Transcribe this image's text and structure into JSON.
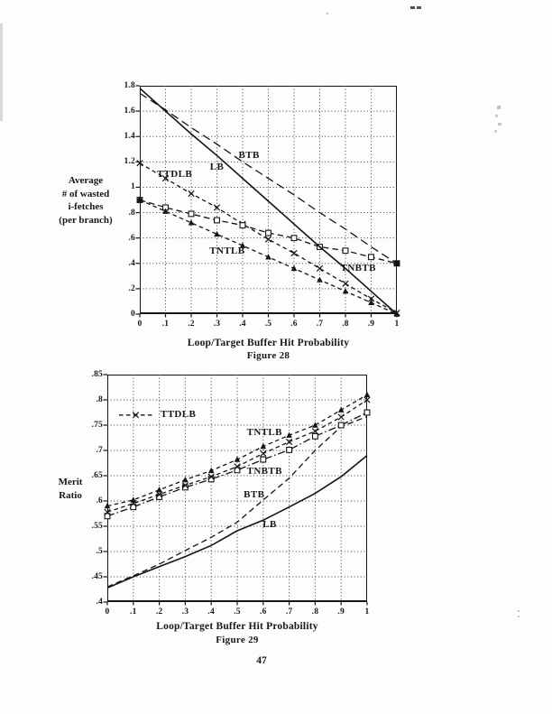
{
  "page": {
    "number": "47"
  },
  "figures": [
    {
      "caption": "Figure 28",
      "xlabel": "Loop/Target Buffer Hit Probability",
      "ylabel_lines": [
        "Average",
        "# of wasted",
        "i-fetches",
        "(per branch)"
      ],
      "chart_data": {
        "type": "line",
        "x": [
          0,
          0.1,
          0.2,
          0.3,
          0.4,
          0.5,
          0.6,
          0.7,
          0.8,
          0.9,
          1
        ],
        "xtick_labels": [
          "0",
          ".1",
          ".2",
          ".3",
          ".4",
          ".5",
          ".6",
          ".7",
          ".8",
          ".9",
          "1"
        ],
        "ytick_values": [
          0,
          0.2,
          0.4,
          0.6,
          0.8,
          1,
          1.2,
          1.4,
          1.6,
          1.8
        ],
        "ytick_labels": [
          "0",
          ".2",
          ".4",
          ".6",
          ".8",
          "1",
          "1.2",
          "1.4",
          "1.6",
          "1.8"
        ],
        "ylim": [
          0,
          1.8
        ],
        "grid": "dotted",
        "legend_position": "in-plot-labels",
        "series": [
          {
            "name": "BTB",
            "style": "longdash",
            "marker": "none",
            "values": [
              1.74,
              1.61,
              1.47,
              1.34,
              1.2,
              1.07,
              0.94,
              0.8,
              0.67,
              0.53,
              0.4
            ]
          },
          {
            "name": "TTDLB",
            "style": "dash",
            "marker": "x",
            "values": [
              1.19,
              1.07,
              0.95,
              0.84,
              0.71,
              0.59,
              0.48,
              0.36,
              0.24,
              0.12,
              0.01
            ]
          },
          {
            "name": "TNBTB",
            "style": "meddash",
            "marker": "square-open",
            "values": [
              0.9,
              0.84,
              0.79,
              0.74,
              0.7,
              0.64,
              0.6,
              0.53,
              0.5,
              0.45,
              0.4
            ]
          },
          {
            "name": "TNTLB",
            "style": "dash",
            "marker": "triangle",
            "values": [
              0.9,
              0.81,
              0.72,
              0.63,
              0.54,
              0.45,
              0.36,
              0.27,
              0.18,
              0.09,
              0
            ]
          },
          {
            "name": "LB",
            "style": "solid",
            "marker": "none",
            "values": [
              1.78,
              1.6,
              1.42,
              1.25,
              1.07,
              0.89,
              0.71,
              0.53,
              0.36,
              0.18,
              0
            ]
          }
        ],
        "extra_points": [
          {
            "x": 0,
            "y": 0.9,
            "marker": "dot"
          },
          {
            "x": 1,
            "y": 0.4,
            "marker": "square-filled"
          }
        ],
        "series_labels": [
          {
            "text": "BTB",
            "x": 0.425,
            "y": 1.25
          },
          {
            "text": "LB",
            "x": 0.3,
            "y": 1.16
          },
          {
            "text": "TTDLB",
            "x": 0.135,
            "y": 1.1
          },
          {
            "text": "TNTLB",
            "x": 0.34,
            "y": 0.5
          },
          {
            "text": "TNBTB",
            "x": 0.85,
            "y": 0.365
          }
        ]
      }
    },
    {
      "caption": "Figure 29",
      "xlabel": "Loop/Target Buffer Hit Probability",
      "ylabel_lines": [
        "Merit",
        "Ratio"
      ],
      "chart_data": {
        "type": "line",
        "x": [
          0,
          0.1,
          0.2,
          0.3,
          0.4,
          0.5,
          0.6,
          0.7,
          0.8,
          0.9,
          1
        ],
        "xtick_labels": [
          "0",
          ".1",
          ".2",
          ".3",
          ".4",
          ".5",
          ".6",
          ".7",
          ".8",
          ".9",
          "1"
        ],
        "ytick_values": [
          0.4,
          0.45,
          0.5,
          0.55,
          0.6,
          0.65,
          0.7,
          0.75,
          0.8,
          0.85
        ],
        "ytick_labels": [
          ".4",
          ".45",
          ".5",
          ".55",
          ".6",
          ".65",
          ".7",
          ".75",
          ".8",
          ".85"
        ],
        "ylim": [
          0.4,
          0.85
        ],
        "grid": "dotted",
        "legend": {
          "text": "TTDLB",
          "marker": "x",
          "x": 0.045,
          "y": 0.77
        },
        "series": [
          {
            "name": "BTB",
            "style": "meddash",
            "marker": "none",
            "values": [
              0.43,
              0.452,
              0.475,
              0.502,
              0.528,
              0.558,
              0.602,
              0.645,
              0.7,
              0.747,
              0.767
            ]
          },
          {
            "name": "LB",
            "style": "solid",
            "marker": "none",
            "values": [
              0.428,
              0.45,
              0.47,
              0.49,
              0.512,
              0.541,
              0.562,
              0.588,
              0.615,
              0.648,
              0.69
            ]
          },
          {
            "name": "TNBTB",
            "style": "dashdot",
            "marker": "square-open",
            "values": [
              0.57,
              0.588,
              0.608,
              0.627,
              0.643,
              0.661,
              0.682,
              0.701,
              0.728,
              0.75,
              0.775
            ]
          },
          {
            "name": "TTDLB",
            "style": "dash",
            "marker": "x",
            "values": [
              0.578,
              0.595,
              0.613,
              0.631,
              0.648,
              0.668,
              0.694,
              0.717,
              0.738,
              0.766,
              0.8
            ]
          },
          {
            "name": "TNTLB",
            "style": "dash",
            "marker": "triangle",
            "values": [
              0.59,
              0.602,
              0.622,
              0.642,
              0.66,
              0.682,
              0.708,
              0.73,
              0.75,
              0.78,
              0.81
            ]
          }
        ],
        "extra_points": [],
        "series_labels": [
          {
            "text": "TNTLB",
            "x": 0.605,
            "y": 0.735
          },
          {
            "text": "TNBTB",
            "x": 0.605,
            "y": 0.659
          },
          {
            "text": "BTB",
            "x": 0.565,
            "y": 0.612
          },
          {
            "text": "LB",
            "x": 0.625,
            "y": 0.553
          }
        ]
      }
    }
  ]
}
